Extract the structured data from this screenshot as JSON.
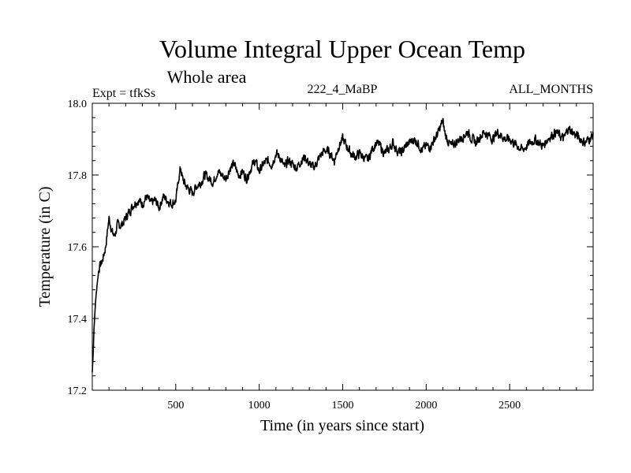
{
  "chart_data": {
    "type": "line",
    "title": "Volume Integral Upper Ocean Temp",
    "subtitle": "Whole area",
    "annotations": {
      "experiment": "Expt = tfkSs",
      "run": "222_4_MaBP",
      "months": "ALL_MONTHS"
    },
    "xlabel": "Time (in years since start)",
    "ylabel": "Temperature (in C)",
    "xlim": [
      0,
      3000
    ],
    "ylim": [
      17.2,
      18.0
    ],
    "x_ticks": [
      500,
      1000,
      1500,
      2000,
      2500
    ],
    "x_tick_labels": [
      "500",
      "1000",
      "1500",
      "2000",
      "2500"
    ],
    "y_ticks": [
      17.2,
      17.4,
      17.6,
      17.8,
      18.0
    ],
    "y_tick_labels": [
      "17.2",
      "17.4",
      "17.6",
      "17.8",
      "18.0"
    ],
    "grid": false,
    "series": [
      {
        "name": "Temperature",
        "color": "#000000",
        "x": [
          0,
          5,
          10,
          20,
          30,
          40,
          50,
          60,
          70,
          80,
          90,
          100,
          110,
          120,
          130,
          140,
          150,
          175,
          200,
          225,
          250,
          275,
          300,
          325,
          350,
          375,
          400,
          425,
          450,
          475,
          500,
          510,
          520,
          530,
          540,
          560,
          580,
          600,
          625,
          650,
          675,
          700,
          725,
          750,
          775,
          800,
          825,
          850,
          875,
          900,
          925,
          950,
          975,
          1000,
          1025,
          1050,
          1075,
          1100,
          1125,
          1150,
          1175,
          1200,
          1225,
          1250,
          1275,
          1300,
          1325,
          1350,
          1375,
          1400,
          1425,
          1450,
          1475,
          1500,
          1525,
          1550,
          1575,
          1600,
          1625,
          1650,
          1675,
          1700,
          1725,
          1750,
          1775,
          1800,
          1825,
          1850,
          1875,
          1900,
          1925,
          1950,
          1975,
          2000,
          2025,
          2050,
          2075,
          2090,
          2100,
          2110,
          2125,
          2150,
          2175,
          2200,
          2225,
          2250,
          2275,
          2300,
          2325,
          2350,
          2375,
          2400,
          2425,
          2450,
          2475,
          2500,
          2525,
          2550,
          2575,
          2600,
          2625,
          2650,
          2675,
          2700,
          2725,
          2750,
          2775,
          2800,
          2825,
          2850,
          2875,
          2900,
          2925,
          2950,
          2975,
          3000
        ],
        "values": [
          17.25,
          17.3,
          17.37,
          17.45,
          17.5,
          17.54,
          17.55,
          17.56,
          17.58,
          17.6,
          17.64,
          17.68,
          17.66,
          17.64,
          17.63,
          17.64,
          17.66,
          17.66,
          17.68,
          17.7,
          17.72,
          17.73,
          17.72,
          17.74,
          17.72,
          17.73,
          17.71,
          17.74,
          17.73,
          17.72,
          17.73,
          17.76,
          17.8,
          17.82,
          17.79,
          17.77,
          17.76,
          17.75,
          17.77,
          17.78,
          17.8,
          17.79,
          17.78,
          17.81,
          17.8,
          17.79,
          17.82,
          17.83,
          17.8,
          17.81,
          17.79,
          17.82,
          17.84,
          17.81,
          17.83,
          17.84,
          17.83,
          17.86,
          17.85,
          17.82,
          17.84,
          17.83,
          17.82,
          17.84,
          17.85,
          17.83,
          17.82,
          17.84,
          17.86,
          17.87,
          17.86,
          17.84,
          17.88,
          17.9,
          17.88,
          17.86,
          17.85,
          17.86,
          17.85,
          17.84,
          17.87,
          17.89,
          17.88,
          17.86,
          17.87,
          17.89,
          17.87,
          17.86,
          17.88,
          17.89,
          17.9,
          17.89,
          17.87,
          17.88,
          17.88,
          17.9,
          17.92,
          17.94,
          17.95,
          17.92,
          17.9,
          17.88,
          17.89,
          17.9,
          17.91,
          17.92,
          17.9,
          17.89,
          17.91,
          17.92,
          17.91,
          17.9,
          17.92,
          17.91,
          17.9,
          17.9,
          17.89,
          17.88,
          17.87,
          17.88,
          17.89,
          17.9,
          17.89,
          17.88,
          17.9,
          17.91,
          17.92,
          17.91,
          17.9,
          17.93,
          17.92,
          17.91,
          17.9,
          17.89,
          17.9,
          17.91
        ]
      }
    ]
  }
}
